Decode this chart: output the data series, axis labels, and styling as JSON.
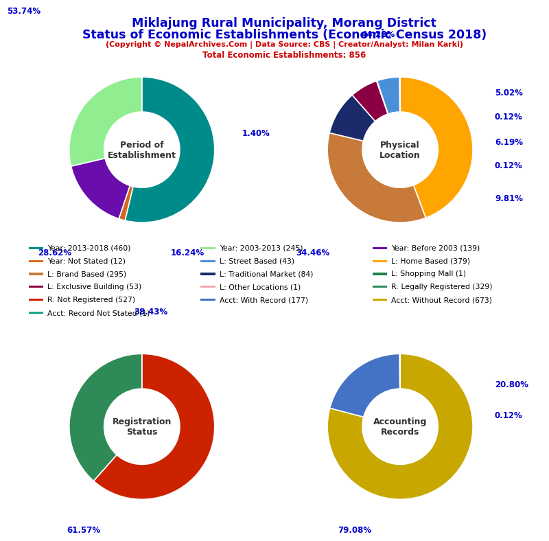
{
  "title_line1": "Miklajung Rural Municipality, Morang District",
  "title_line2": "Status of Economic Establishments (Economic Census 2018)",
  "subtitle": "(Copyright © NepalArchives.Com | Data Source: CBS | Creator/Analyst: Milan Karki)",
  "subtitle2": "Total Economic Establishments: 856",
  "title_color": "#0000CC",
  "subtitle_color": "#CC0000",
  "chart1_label": "Period of\nEstablishment",
  "chart1_values": [
    53.74,
    1.4,
    16.24,
    28.62
  ],
  "chart1_colors": [
    "#008B8B",
    "#D2691E",
    "#6A0DAD",
    "#90EE90"
  ],
  "chart1_pcts": [
    "53.74%",
    "1.40%",
    "16.24%",
    "28.62%"
  ],
  "chart2_label": "Physical\nLocation",
  "chart2_values": [
    44.28,
    34.46,
    9.81,
    6.19,
    0.12,
    5.02,
    0.12
  ],
  "chart2_colors": [
    "#FFA500",
    "#C87A3A",
    "#1B2A6B",
    "#8B0045",
    "#1E8449",
    "#4A90D9",
    "#006060"
  ],
  "chart2_pcts": [
    "44.28%",
    "34.46%",
    "9.81%",
    "6.19%",
    "0.12%",
    "5.02%",
    "0.12%"
  ],
  "chart3_label": "Registration\nStatus",
  "chart3_values": [
    61.57,
    38.43
  ],
  "chart3_colors": [
    "#CC2200",
    "#2E8B57"
  ],
  "chart3_pcts": [
    "61.57%",
    "38.43%"
  ],
  "chart4_label": "Accounting\nRecords",
  "chart4_values": [
    79.08,
    20.8,
    0.12
  ],
  "chart4_colors": [
    "#C8A800",
    "#4472C4",
    "#17A589"
  ],
  "chart4_pcts": [
    "79.08%",
    "20.80%",
    "0.12%"
  ],
  "legend_items": [
    {
      "label": "Year: 2013-2018 (460)",
      "color": "#008B8B"
    },
    {
      "label": "Year: 2003-2013 (245)",
      "color": "#90EE90"
    },
    {
      "label": "Year: Before 2003 (139)",
      "color": "#6A0DAD"
    },
    {
      "label": "Year: Not Stated (12)",
      "color": "#D2691E"
    },
    {
      "label": "L: Street Based (43)",
      "color": "#4A90D9"
    },
    {
      "label": "L: Home Based (379)",
      "color": "#FFA500"
    },
    {
      "label": "L: Brand Based (295)",
      "color": "#C87A3A"
    },
    {
      "label": "L: Traditional Market (84)",
      "color": "#1B2A6B"
    },
    {
      "label": "L: Shopping Mall (1)",
      "color": "#1E8449"
    },
    {
      "label": "L: Exclusive Building (53)",
      "color": "#8B0045"
    },
    {
      "label": "L: Other Locations (1)",
      "color": "#F4A7B0"
    },
    {
      "label": "R: Legally Registered (329)",
      "color": "#2E8B57"
    },
    {
      "label": "R: Not Registered (527)",
      "color": "#CC2200"
    },
    {
      "label": "Acct: With Record (177)",
      "color": "#4472C4"
    },
    {
      "label": "Acct: Without Record (673)",
      "color": "#C8A800"
    },
    {
      "label": "Acct: Record Not Stated (1)",
      "color": "#17A589"
    }
  ]
}
